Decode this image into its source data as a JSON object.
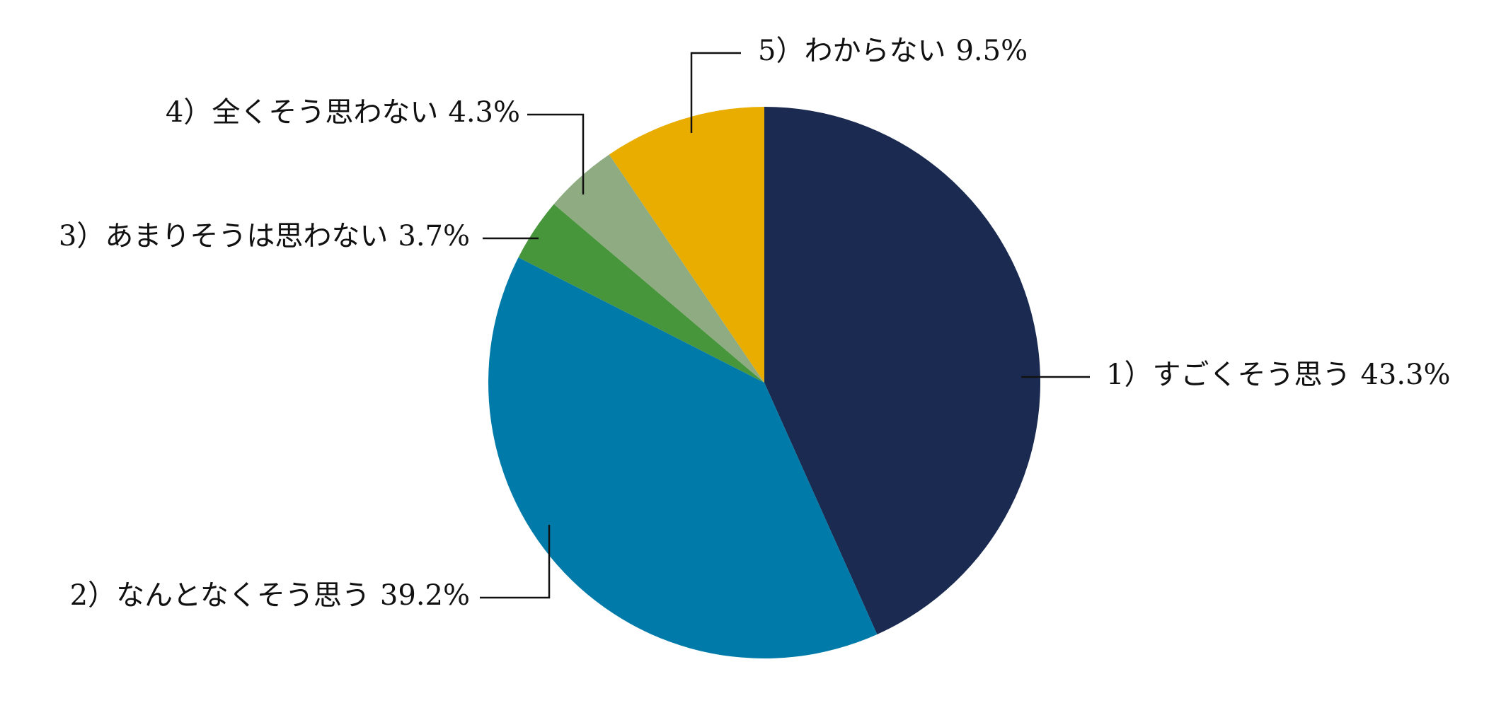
{
  "chart_data": {
    "type": "pie",
    "categories": [
      "1）すごくそう思う",
      "2）なんとなくそう思う",
      "3）あまりそうは思わない",
      "4）全くそう思わない",
      "5）わからない"
    ],
    "values": [
      43.3,
      39.2,
      3.7,
      4.3,
      9.5
    ],
    "value_labels": [
      "43.3%",
      "39.2%",
      "3.7%",
      "4.3%",
      "9.5%"
    ],
    "colors": [
      "#1a2a50",
      "#007ba9",
      "#48963c",
      "#8fab82",
      "#e9ad00"
    ]
  }
}
